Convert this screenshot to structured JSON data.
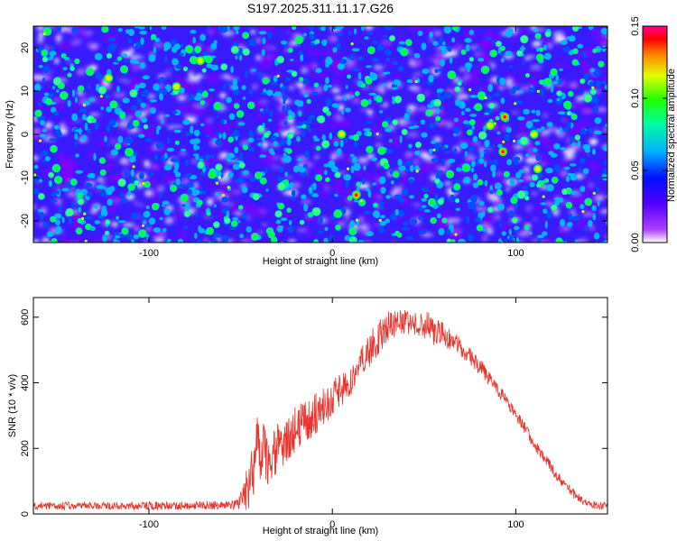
{
  "title": "S197.2025.311.11.17.G26",
  "chart_data": [
    {
      "type": "heatmap",
      "title": "S197.2025.311.11.17.G26",
      "xlabel": "Height of straight line (km)",
      "ylabel": "Frequency (Hz)",
      "xlim": [
        -163,
        150
      ],
      "ylim": [
        -25,
        25
      ],
      "xticks": [
        -100,
        0,
        100
      ],
      "yticks": [
        -20,
        -10,
        0,
        10,
        20
      ],
      "colorbar": {
        "label": "Normalized spectral amplitude",
        "range": [
          0.0,
          0.15
        ],
        "ticks": [
          "0.00",
          "0.05",
          "0.10",
          "0.15"
        ],
        "colors": [
          "#ffffff",
          "#9a00ff",
          "#0000ff",
          "#00c8ff",
          "#00ff00",
          "#ffff00",
          "#ff0000",
          "#ff00aa"
        ]
      },
      "background_color": "#3a1aff",
      "hotspots": [
        {
          "x": 94,
          "y": 4,
          "amp": 0.15
        },
        {
          "x": 93,
          "y": -4,
          "amp": 0.13
        },
        {
          "x": 13,
          "y": -14,
          "amp": 0.14
        },
        {
          "x": -72,
          "y": 17,
          "amp": 0.1
        },
        {
          "x": -122,
          "y": 13,
          "amp": 0.1
        },
        {
          "x": -85,
          "y": 11,
          "amp": 0.09
        },
        {
          "x": 86,
          "y": 2,
          "amp": 0.09
        },
        {
          "x": 110,
          "y": 0,
          "amp": 0.09
        },
        {
          "x": 112,
          "y": -8,
          "amp": 0.1
        },
        {
          "x": 5,
          "y": 0,
          "amp": 0.08
        }
      ]
    },
    {
      "type": "line",
      "xlabel": "Height of straight line (km)",
      "ylabel": "SNR (10 * v/v)",
      "xlim": [
        -163,
        150
      ],
      "ylim": [
        0,
        660
      ],
      "xticks": [
        -100,
        0,
        100
      ],
      "yticks": [
        0,
        200,
        400,
        600
      ],
      "line_color": "#e8342c",
      "series": [
        {
          "name": "SNR",
          "x": [
            -163,
            -120,
            -80,
            -52,
            -48,
            -44,
            -42,
            -40,
            -38,
            -36,
            -34,
            -30,
            -25,
            -20,
            -15,
            -10,
            -5,
            0,
            5,
            10,
            15,
            20,
            25,
            30,
            35,
            40,
            45,
            50,
            55,
            60,
            65,
            70,
            75,
            80,
            85,
            90,
            95,
            100,
            105,
            110,
            115,
            120,
            125,
            130,
            135,
            140,
            145,
            150
          ],
          "y": [
            25,
            25,
            25,
            28,
            60,
            110,
            180,
            210,
            220,
            160,
            170,
            200,
            225,
            260,
            285,
            300,
            330,
            350,
            380,
            410,
            450,
            500,
            540,
            570,
            580,
            585,
            585,
            580,
            560,
            545,
            530,
            510,
            480,
            450,
            420,
            380,
            345,
            300,
            260,
            215,
            175,
            135,
            100,
            70,
            45,
            30,
            25,
            25
          ],
          "noise_amplitude": [
            12,
            12,
            12,
            15,
            60,
            90,
            100,
            110,
            100,
            90,
            80,
            75,
            70,
            70,
            65,
            65,
            60,
            55,
            55,
            50,
            50,
            55,
            55,
            50,
            45,
            40,
            40,
            45,
            45,
            40,
            30,
            30,
            25,
            25,
            25,
            20,
            20,
            20,
            20,
            18,
            18,
            18,
            15,
            15,
            15,
            12,
            12,
            12
          ]
        }
      ]
    }
  ]
}
